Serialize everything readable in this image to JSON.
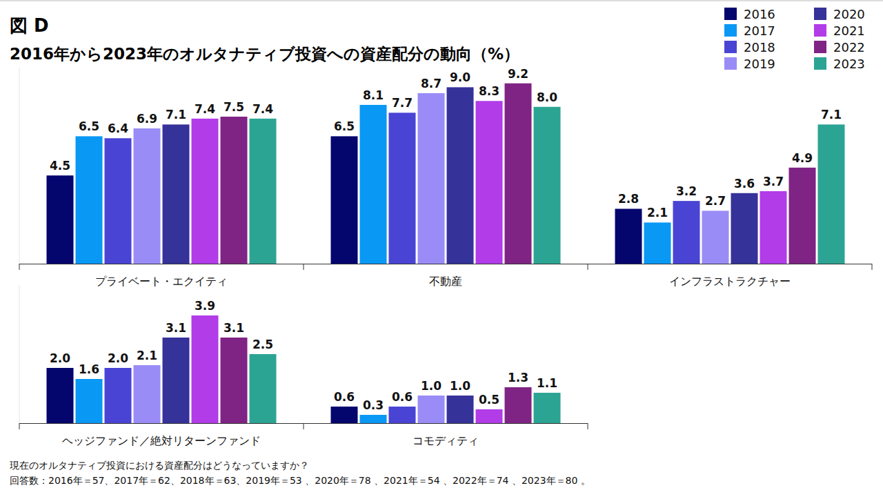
{
  "chart_data": [
    {
      "type": "bar",
      "title": "図 D",
      "subtitle": "2016年から2023年のオルタナティブ投資への資産配分の動向（%）",
      "categories": [
        "プライベート・エクイティ",
        "不動産",
        "インフラストラクチャー"
      ],
      "series": [
        {
          "name": "2016",
          "color": "#05056e",
          "values": [
            4.5,
            6.5,
            2.8
          ],
          "value_labels": [
            "4.5",
            "6.5",
            "2.8"
          ]
        },
        {
          "name": "2017",
          "color": "#0a98f5",
          "values": [
            6.5,
            8.1,
            2.1
          ],
          "value_labels": [
            "6.5",
            "8.1",
            "2.1"
          ]
        },
        {
          "name": "2018",
          "color": "#4a44d4",
          "values": [
            6.4,
            7.7,
            3.2
          ],
          "value_labels": [
            "6.4",
            "7.7",
            "3.2"
          ]
        },
        {
          "name": "2019",
          "color": "#9a8cf6",
          "values": [
            6.9,
            8.7,
            2.7
          ],
          "value_labels": [
            "6.9",
            "8.7",
            "2.7"
          ]
        },
        {
          "name": "2020",
          "color": "#35329a",
          "values": [
            7.1,
            9.0,
            3.6
          ],
          "value_labels": [
            "7.1",
            "9.0",
            "3.6"
          ]
        },
        {
          "name": "2021",
          "color": "#b23ce8",
          "values": [
            7.4,
            8.3,
            3.7
          ],
          "value_labels": [
            "7.4",
            "8.3",
            "3.7"
          ]
        },
        {
          "name": "2022",
          "color": "#7f2484",
          "values": [
            7.5,
            9.2,
            4.9
          ],
          "value_labels": [
            "7.5",
            "9.2",
            "4.9"
          ]
        },
        {
          "name": "2023",
          "color": "#2ca493",
          "values": [
            7.4,
            8.0,
            7.1
          ],
          "value_labels": [
            "7.4",
            "8.0",
            "7.1"
          ]
        }
      ],
      "ylim": [
        0,
        10
      ],
      "data_labels": true,
      "tick_labels": "x",
      "grid": false,
      "legend": "top-right"
    },
    {
      "type": "bar",
      "categories": [
        "ヘッジファンド／絶対リターンファンド",
        "コモディティ"
      ],
      "series": [
        {
          "color": "#05056e",
          "values": [
            2.0,
            0.6
          ],
          "value_labels": [
            "2.0",
            "0.6"
          ]
        },
        {
          "color": "#0a98f5",
          "values": [
            1.6,
            0.3
          ],
          "value_labels": [
            "1.6",
            "0.3"
          ]
        },
        {
          "color": "#4a44d4",
          "values": [
            2.0,
            0.6
          ],
          "value_labels": [
            "2.0",
            "0.6"
          ]
        },
        {
          "color": "#9a8cf6",
          "values": [
            2.1,
            1.0
          ],
          "value_labels": [
            "2.1",
            "1.0"
          ]
        },
        {
          "color": "#35329a",
          "values": [
            3.1,
            1.0
          ],
          "value_labels": [
            "3.1",
            "1.0"
          ]
        },
        {
          "color": "#b23ce8",
          "values": [
            3.9,
            0.5
          ],
          "value_labels": [
            "3.9",
            "0.5"
          ]
        },
        {
          "color": "#7f2484",
          "values": [
            3.1,
            1.3
          ],
          "value_labels": [
            "3.1",
            "1.3"
          ]
        },
        {
          "color": "#2ca493",
          "values": [
            2.5,
            1.1
          ],
          "value_labels": [
            "2.5",
            "1.1"
          ]
        }
      ],
      "ylim": [
        0,
        5
      ],
      "data_labels": true,
      "tick_labels": "x",
      "grid": false,
      "annotations": [
        "現在のオルタナティブ投資における資産配分はどうなっていますか？",
        "回答数：2016年＝57、2017年＝62、2018年＝63、2019年＝53 、2020年＝78 、2021年＝54 、2022年＝74 、2023年＝80 。"
      ]
    }
  ]
}
